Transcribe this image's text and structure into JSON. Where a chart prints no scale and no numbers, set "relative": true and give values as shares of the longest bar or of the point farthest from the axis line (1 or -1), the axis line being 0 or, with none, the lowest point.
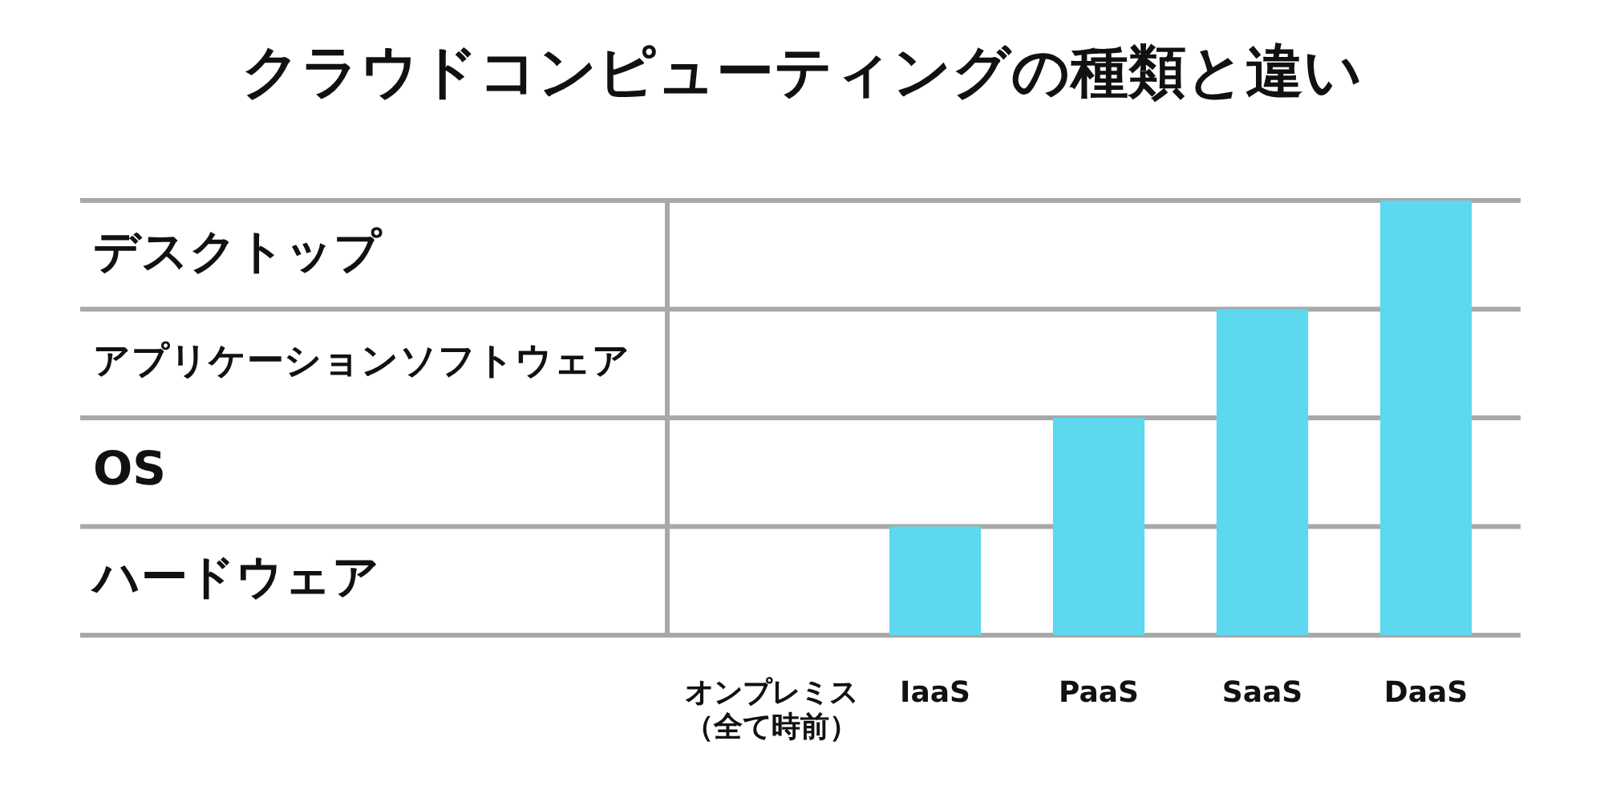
{
  "chart_data": {
    "type": "bar",
    "title": "クラウドコンピューティングの種類と違い",
    "categories": [
      "オンプレミス（全て時前）",
      "IaaS",
      "PaaS",
      "SaaS",
      "DaaS"
    ],
    "values": [
      0,
      0.25,
      0.5,
      0.75,
      1
    ],
    "color": "#5dd8ef",
    "relative": true,
    "legend": false,
    "ref_lines": [
      {
        "axis": "y",
        "value": 1,
        "color": "#a8a8a8"
      },
      {
        "axis": "y",
        "value": 0.75,
        "color": "#a8a8a8"
      },
      {
        "axis": "y",
        "value": 0.5,
        "color": "#a8a8a8"
      },
      {
        "axis": "y",
        "value": 0.25,
        "color": "#a8a8a8"
      },
      {
        "axis": "y",
        "value": 0,
        "color": "#a8a8a8"
      }
    ],
    "annotations": [
      "デスクトップ",
      "アプリケーションソフトウェア",
      "OS",
      "ハードウェア"
    ]
  }
}
